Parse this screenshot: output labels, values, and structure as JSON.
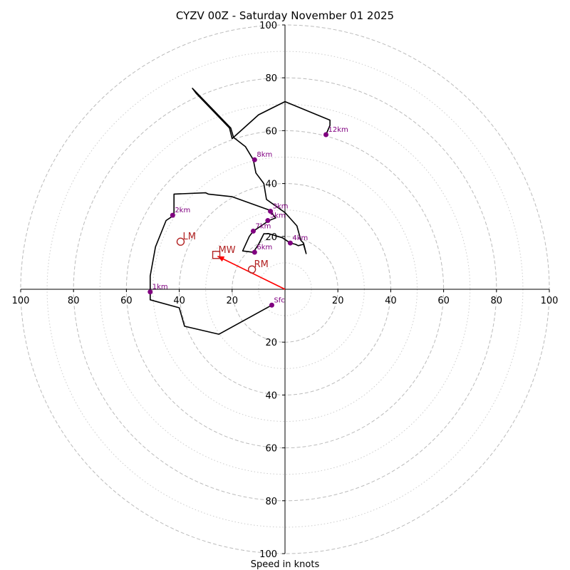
{
  "chart_data": {
    "type": "hodograph",
    "title": "CYZV 00Z - Saturday November 01 2025",
    "xlabel": "Speed in knots",
    "range": [
      -100,
      100
    ],
    "ring_major": [
      20,
      40,
      60,
      80,
      100
    ],
    "ring_minor": [
      10,
      30,
      50,
      70,
      90
    ],
    "x_ticks": [
      {
        "v": -100,
        "t": "100"
      },
      {
        "v": -80,
        "t": "80"
      },
      {
        "v": -60,
        "t": "60"
      },
      {
        "v": -40,
        "t": "40"
      },
      {
        "v": -20,
        "t": "20"
      },
      {
        "v": 20,
        "t": "20"
      },
      {
        "v": 40,
        "t": "40"
      },
      {
        "v": 60,
        "t": "60"
      },
      {
        "v": 80,
        "t": "80"
      },
      {
        "v": 100,
        "t": "100"
      }
    ],
    "y_ticks": [
      {
        "v": 100,
        "t": "100"
      },
      {
        "v": 80,
        "t": "80"
      },
      {
        "v": 60,
        "t": "60"
      },
      {
        "v": 40,
        "t": "40"
      },
      {
        "v": 20,
        "t": "20"
      },
      {
        "v": -20,
        "t": "20"
      },
      {
        "v": -40,
        "t": "40"
      },
      {
        "v": -60,
        "t": "60"
      },
      {
        "v": -80,
        "t": "80"
      },
      {
        "v": -100,
        "t": "100"
      }
    ],
    "hodograph": [
      [
        -5,
        -6
      ],
      [
        -25,
        -17
      ],
      [
        -38,
        -14
      ],
      [
        -40,
        -7
      ],
      [
        -51,
        -4
      ],
      [
        -51,
        5
      ],
      [
        -49,
        16
      ],
      [
        -45,
        26
      ],
      [
        -42,
        28
      ],
      [
        -42,
        36
      ],
      [
        -30,
        36.5
      ],
      [
        -29,
        36
      ],
      [
        -20,
        35
      ],
      [
        -6,
        30
      ],
      [
        -3.5,
        27
      ],
      [
        -6,
        26
      ],
      [
        -12,
        22
      ],
      [
        -13.5,
        20
      ],
      [
        -16,
        14.5
      ],
      [
        -12,
        14
      ],
      [
        -10,
        17
      ],
      [
        -8,
        21
      ],
      [
        -6,
        21
      ],
      [
        -1,
        19.5
      ],
      [
        2,
        17.5
      ],
      [
        4,
        17
      ],
      [
        5,
        16.5
      ],
      [
        7,
        17
      ],
      [
        8,
        13.5
      ],
      [
        7,
        17.5
      ],
      [
        6,
        18.5
      ],
      [
        4.5,
        24
      ],
      [
        0,
        29
      ],
      [
        -7,
        34
      ],
      [
        -8,
        40
      ],
      [
        -11,
        44
      ],
      [
        -12,
        49
      ],
      [
        -15,
        54
      ],
      [
        -19.5,
        57.5
      ],
      [
        -20.5,
        61
      ],
      [
        -35,
        76
      ],
      [
        -33.5,
        74
      ],
      [
        -21,
        61
      ],
      [
        -20,
        57
      ],
      [
        -10,
        66
      ],
      [
        0,
        71
      ],
      [
        17,
        64
      ],
      [
        17,
        62
      ],
      [
        15.5,
        58.5
      ]
    ],
    "height_markers": [
      {
        "label": "Sfc",
        "x": -5,
        "y": -6
      },
      {
        "label": "1km",
        "x": -51,
        "y": -1
      },
      {
        "label": "2km",
        "x": -42.5,
        "y": 28
      },
      {
        "label": "3km",
        "x": -5.5,
        "y": 29.5
      },
      {
        "label": "4km",
        "x": 2,
        "y": 17.5
      },
      {
        "label": "5km",
        "x": -6.5,
        "y": 26
      },
      {
        "label": "6km",
        "x": -11.5,
        "y": 14
      },
      {
        "label": "7km",
        "x": -12,
        "y": 22
      },
      {
        "label": "8km",
        "x": -11.5,
        "y": 49
      },
      {
        "label": "12km",
        "x": 15.5,
        "y": 58.5
      }
    ],
    "motion_markers": [
      {
        "label": "LM",
        "x": -39.5,
        "y": 18,
        "shape": "circle"
      },
      {
        "label": "MW",
        "x": -26,
        "y": 13,
        "shape": "square"
      },
      {
        "label": "RM",
        "x": -12.5,
        "y": 7.5,
        "shape": "circle"
      }
    ],
    "motion_vector": {
      "from": [
        0,
        0
      ],
      "to": [
        -25.5,
        12.5
      ]
    },
    "colors": {
      "hodograph": "#000000",
      "height_marker": "#800080",
      "motion": "#b22222",
      "vector": "#ff0000",
      "grid": "#bbbbbb"
    }
  }
}
